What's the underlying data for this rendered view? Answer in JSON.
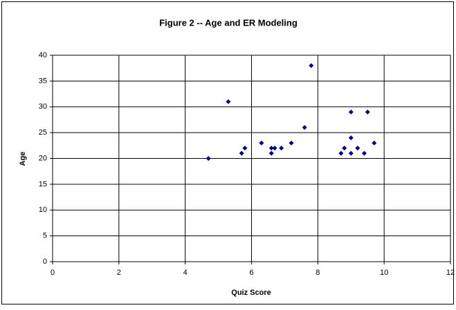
{
  "chart_data": {
    "type": "scatter",
    "title": "Figure 2 -- Age and ER Modeling",
    "x_label": "Quiz Score",
    "y_label": "Age",
    "series": [
      {
        "color": "#000080",
        "x": [
          4.7,
          5.3,
          5.7,
          5.8,
          6.3,
          6.6,
          6.6,
          6.7,
          6.9,
          7.2,
          7.6,
          7.8,
          8.7,
          8.8,
          9.0,
          9.0,
          9.0,
          9.2,
          9.4,
          9.5,
          9.7
        ],
        "values": [
          20,
          31,
          21,
          22,
          23,
          21,
          22,
          22,
          22,
          23,
          26,
          38,
          21,
          22,
          21,
          24,
          29,
          22,
          21,
          29,
          23
        ]
      }
    ],
    "xlim": [
      0,
      12
    ],
    "xticks": [
      0,
      2,
      4,
      6,
      8,
      10,
      12
    ],
    "ylim": [
      0,
      40
    ],
    "yticks": [
      0,
      5,
      10,
      15,
      20,
      25,
      30,
      35,
      40
    ],
    "grid": true
  }
}
